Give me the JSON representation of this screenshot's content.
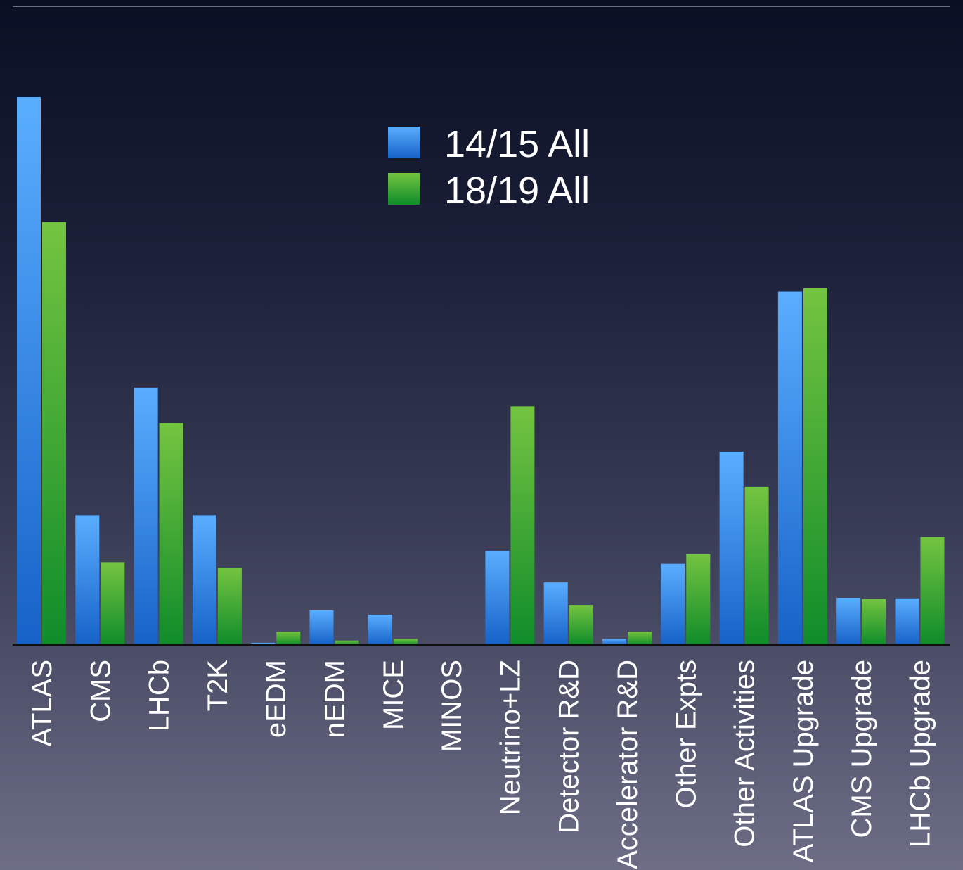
{
  "chart_data": {
    "type": "bar",
    "title": "",
    "xlabel": "",
    "ylabel": "",
    "ylim": [
      0,
      100
    ],
    "grid": false,
    "legend_placement": "top-center",
    "categories": [
      "ATLAS",
      "CMS",
      "LHCb",
      "T2K",
      "eEDM",
      "nEDM",
      "MICE",
      "MINOS",
      "Neutrino+LZ",
      "Detector R&D",
      "Accelerator R&D",
      "Other Expts",
      "Other Activities",
      "ATLAS Upgrade",
      "CMS Upgrade",
      "LHCb Upgrade"
    ],
    "series": [
      {
        "name": "14/15 All",
        "color": "#3a8ff0",
        "values": [
          100,
          23.7,
          47,
          23.7,
          0.4,
          6.3,
          5.5,
          0,
          17.2,
          11.4,
          1.1,
          14.8,
          35.3,
          64.5,
          8.6,
          8.5
        ]
      },
      {
        "name": "18/19 All",
        "color": "#3dab3a",
        "values": [
          77.2,
          15.1,
          40.5,
          14.1,
          2.4,
          0.8,
          1.1,
          0,
          43.6,
          7.3,
          2.4,
          16.6,
          28.9,
          65.1,
          8.4,
          19.7
        ]
      }
    ]
  }
}
